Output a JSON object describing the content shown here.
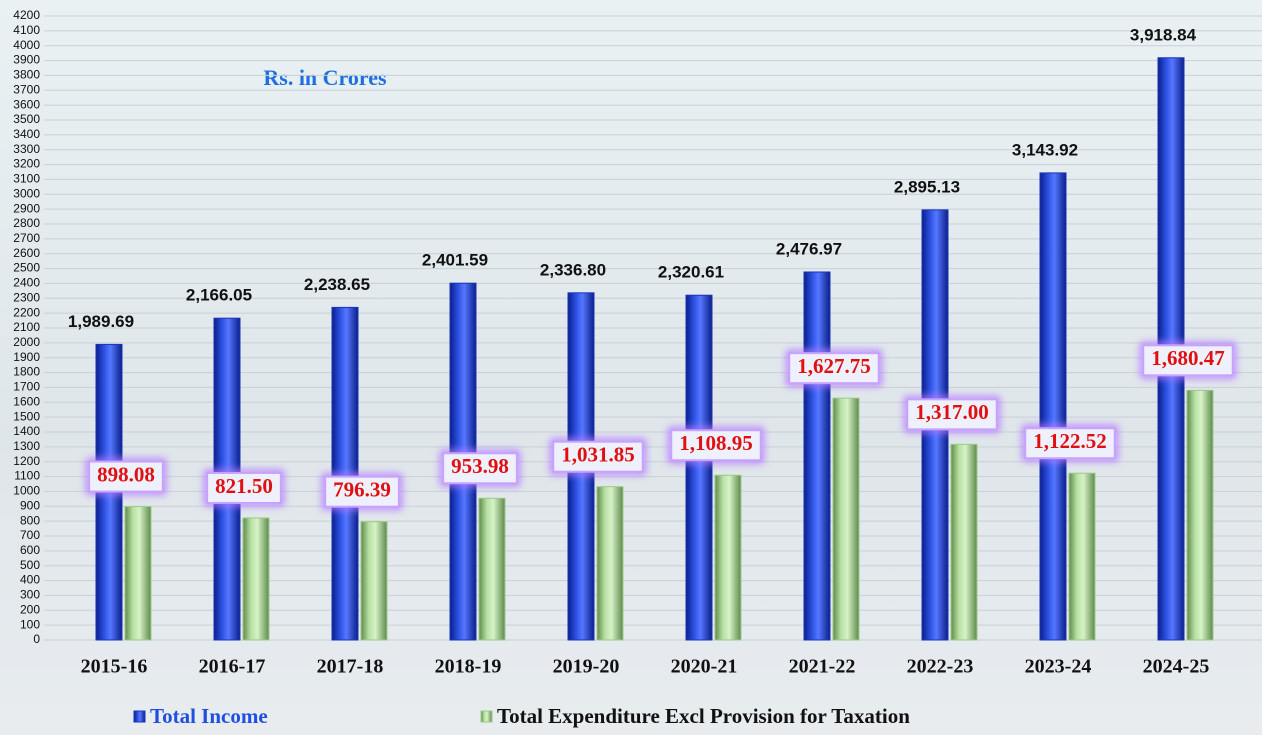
{
  "chart_data": {
    "type": "bar",
    "subtitle": "Rs. in Crores",
    "categories": [
      "2015-16",
      "2016-17",
      "2017-18",
      "2018-19",
      "2019-20",
      "2020-21",
      "2021-22",
      "2022-23",
      "2023-24",
      "2024-25"
    ],
    "series": [
      {
        "name": "Total Income",
        "color": "#1a33b8",
        "values": [
          1989.69,
          2166.05,
          2238.65,
          2401.59,
          2336.8,
          2320.61,
          2476.97,
          2895.13,
          3143.92,
          3918.84
        ],
        "value_labels": [
          "1,989.69",
          "2,166.05",
          "2,238.65",
          "2,401.59",
          "2,336.80",
          "2,320.61",
          "2,476.97",
          "2,895.13",
          "3,143.92",
          "3,918.84"
        ]
      },
      {
        "name": "Total Expenditure Excl Provision for Taxation",
        "color": "#9cc98a",
        "values": [
          898.08,
          821.5,
          796.39,
          953.98,
          1031.85,
          1108.95,
          1627.75,
          1317.0,
          1122.52,
          1680.47
        ],
        "value_labels": [
          "898.08",
          "821.50",
          "796.39",
          "953.98",
          "1,031.85",
          "1,108.95",
          "1,627.75",
          "1,317.00",
          "1,122.52",
          "1,680.47"
        ]
      }
    ],
    "ylim": [
      0,
      4200
    ],
    "yticks": [
      0,
      100,
      200,
      300,
      400,
      500,
      600,
      700,
      800,
      900,
      1000,
      1100,
      1200,
      1300,
      1400,
      1500,
      1600,
      1700,
      1800,
      1900,
      2000,
      2100,
      2200,
      2300,
      2400,
      2500,
      2600,
      2700,
      2800,
      2900,
      3000,
      3100,
      3200,
      3300,
      3400,
      3500,
      3600,
      3700,
      3800,
      3900,
      4000,
      4100,
      4200
    ],
    "grid": true
  }
}
